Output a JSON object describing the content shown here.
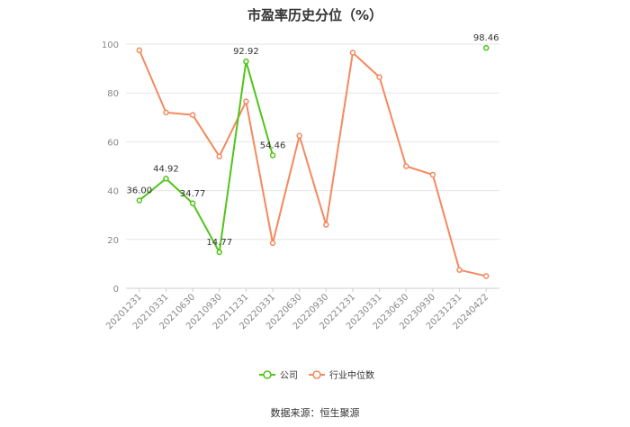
{
  "chart_data": {
    "type": "line",
    "title": "市盈率历史分位（%）",
    "categories": [
      "20201231",
      "20210331",
      "20210630",
      "20210930",
      "20211231",
      "20220331",
      "20220630",
      "20220930",
      "20221231",
      "20230331",
      "20230630",
      "20230930",
      "20231231",
      "20240422"
    ],
    "ylim": [
      0,
      100
    ],
    "yticks": [
      0,
      20,
      40,
      60,
      80,
      100
    ],
    "grid": true,
    "legend_position": "bottom",
    "series": [
      {
        "name": "公司",
        "color": "#52c41a",
        "values": [
          36.0,
          44.92,
          34.77,
          14.77,
          92.92,
          54.46,
          null,
          null,
          null,
          null,
          null,
          null,
          null,
          98.46
        ],
        "labels": [
          "36.00",
          "44.92",
          "34.77",
          "14.77",
          "92.92",
          "54.46",
          null,
          null,
          null,
          null,
          null,
          null,
          null,
          "98.46"
        ]
      },
      {
        "name": "行业中位数",
        "color": "#f4895f",
        "values": [
          97.5,
          72.0,
          71.0,
          54.0,
          76.5,
          18.5,
          62.5,
          26.0,
          96.5,
          86.5,
          50.0,
          46.5,
          7.5,
          5.0
        ],
        "labels": []
      }
    ]
  },
  "source_text": "数据来源：恒生聚源"
}
